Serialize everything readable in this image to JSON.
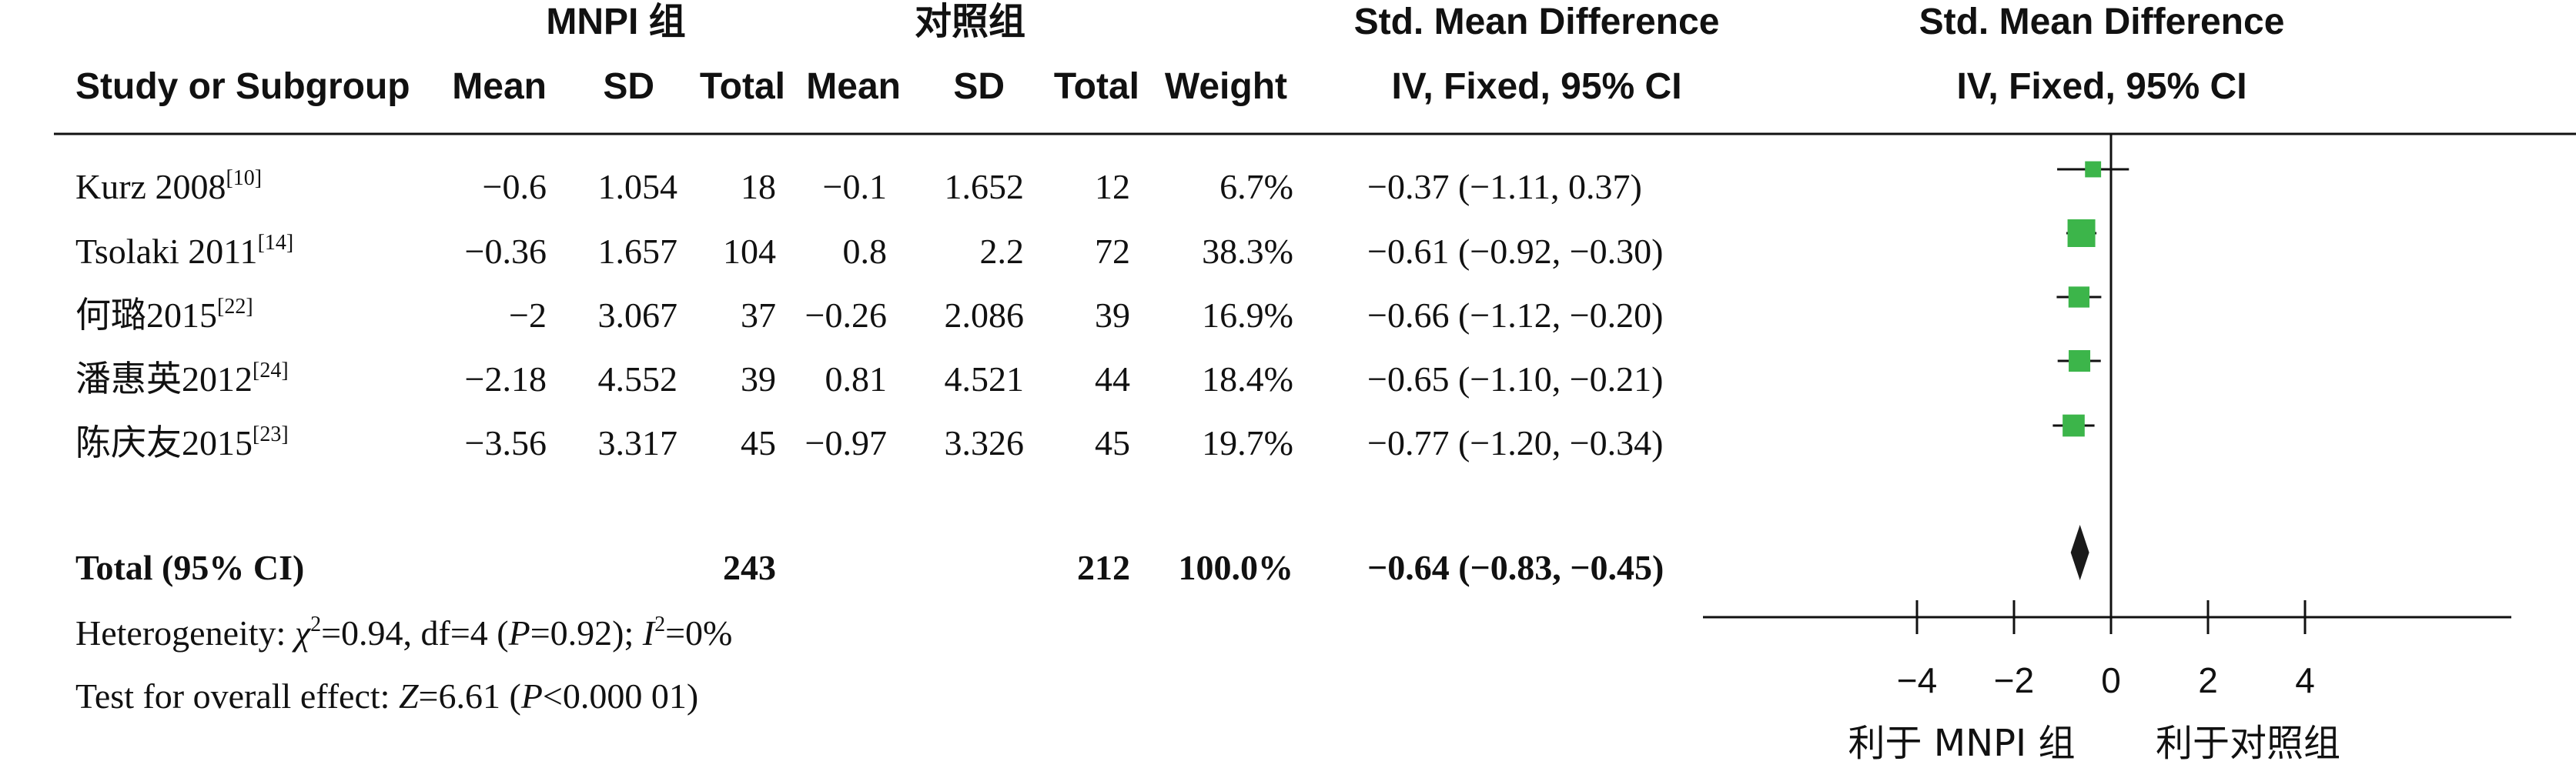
{
  "headers": {
    "group1": "MNPI 组",
    "group2": "对照组",
    "smd_title": "Std. Mean Difference",
    "smd_method": "IV, Fixed, 95% CI",
    "plot_title": "Std. Mean Difference",
    "plot_method": "IV, Fixed, 95% CI",
    "study": "Study or Subgroup",
    "mean": "Mean",
    "sd": "SD",
    "total": "Total",
    "weight": "Weight"
  },
  "studies": [
    {
      "name": "Kurz 2008",
      "ref": "[10]",
      "mean1": "−0.6",
      "sd1": "1.054",
      "n1": "18",
      "mean2": "−0.1",
      "sd2": "1.652",
      "n2": "12",
      "weight": "6.7%",
      "smd_text": "−0.37 (−1.11, 0.37)"
    },
    {
      "name": "Tsolaki 2011",
      "ref": "[14]",
      "mean1": "−0.36",
      "sd1": "1.657",
      "n1": "104",
      "mean2": "0.8",
      "sd2": "2.2",
      "n2": "72",
      "weight": "38.3%",
      "smd_text": "−0.61 (−0.92, −0.30)"
    },
    {
      "name": "何璐2015",
      "ref": "[22]",
      "mean1": "−2",
      "sd1": "3.067",
      "n1": "37",
      "mean2": "−0.26",
      "sd2": "2.086",
      "n2": "39",
      "weight": "16.9%",
      "smd_text": "−0.66 (−1.12, −0.20)"
    },
    {
      "name": "潘惠英2012",
      "ref": "[24]",
      "mean1": "−2.18",
      "sd1": "4.552",
      "n1": "39",
      "mean2": "0.81",
      "sd2": "4.521",
      "n2": "44",
      "weight": "18.4%",
      "smd_text": "−0.65 (−1.10, −0.21)"
    },
    {
      "name": "陈庆友2015",
      "ref": "[23]",
      "mean1": "−3.56",
      "sd1": "3.317",
      "n1": "45",
      "mean2": "−0.97",
      "sd2": "3.326",
      "n2": "45",
      "weight": "19.7%",
      "smd_text": "−0.77 (−1.20, −0.34)"
    }
  ],
  "total": {
    "label": "Total (95% CI)",
    "n1": "243",
    "n2": "212",
    "weight": "100.0%",
    "smd_text": "−0.64 (−0.83, −0.45)"
  },
  "footer": {
    "het_prefix": "Heterogeneity: ",
    "het_chi": "χ",
    "het_chi_sup": "2",
    "het_mid": "=0.94, df=4 (",
    "het_p": "P",
    "het_p_val": "=0.92); ",
    "het_i": "I",
    "het_i_sup": "2",
    "het_i_val": "=0%",
    "effect_prefix": "Test for overall effect: ",
    "effect_z": "Z",
    "effect_z_val": "=6.61 (",
    "effect_p": "P",
    "effect_p_val": "<0.000 01)"
  },
  "favours": {
    "left": "利于 MNPI 组",
    "right": "利于对照组"
  },
  "colors": {
    "square": "#3cb54a",
    "diamond": "#1a1a1a",
    "line": "#111111"
  },
  "chart_data": {
    "type": "forest",
    "x_ticks": [
      -4,
      -2,
      0,
      2,
      4
    ],
    "x_tick_labels": [
      "−4",
      "−2",
      "0",
      "2",
      "4"
    ],
    "xlim": [
      -4,
      4
    ],
    "points": [
      {
        "study": "Kurz 2008",
        "smd": -0.37,
        "ci_low": -1.11,
        "ci_high": 0.37,
        "weight": 6.7
      },
      {
        "study": "Tsolaki 2011",
        "smd": -0.61,
        "ci_low": -0.92,
        "ci_high": -0.3,
        "weight": 38.3
      },
      {
        "study": "何璐2015",
        "smd": -0.66,
        "ci_low": -1.12,
        "ci_high": -0.2,
        "weight": 16.9
      },
      {
        "study": "潘惠英2012",
        "smd": -0.65,
        "ci_low": -1.1,
        "ci_high": -0.21,
        "weight": 18.4
      },
      {
        "study": "陈庆友2015",
        "smd": -0.77,
        "ci_low": -1.2,
        "ci_high": -0.34,
        "weight": 19.7
      }
    ],
    "pooled": {
      "smd": -0.64,
      "ci_low": -0.83,
      "ci_high": -0.45
    }
  }
}
